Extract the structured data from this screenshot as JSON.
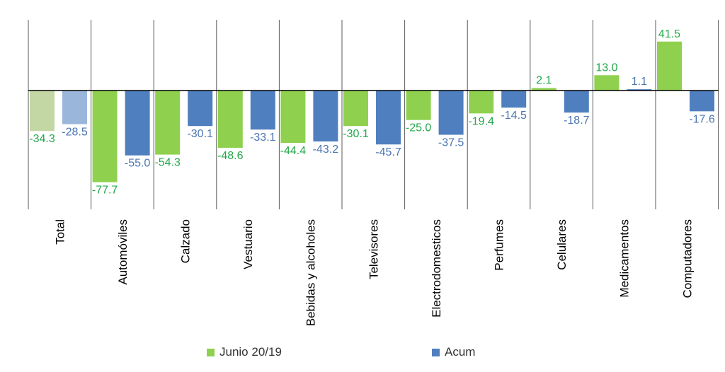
{
  "colors": {
    "junio": "#8fd14f",
    "acum": "#4f7fbe",
    "junio_total": "#c3d7a4",
    "acum_total": "#9ab6db",
    "junio_label": "#22a84a",
    "acum_label": "#4a74b0",
    "grid": "#595959"
  },
  "chart_data": {
    "type": "bar",
    "categories": [
      "Total",
      "Automóviles",
      "Calzado",
      "Vestuario",
      "Bebidas y alcoholes",
      "Televisores",
      "Electrodomesticos",
      "Perfumes",
      "Celulares",
      "Medicamentos",
      "Computadores"
    ],
    "series": [
      {
        "name": "Junio 20/19",
        "values": [
          -34.3,
          -77.7,
          -54.3,
          -48.6,
          -44.4,
          -30.1,
          -25.0,
          -19.4,
          2.1,
          13.0,
          41.5
        ],
        "labels": [
          "-34.3",
          "-77.7",
          "-54.3",
          "-48.6",
          "-44.4",
          "-30.1",
          "-25.0",
          "-19.4",
          "2.1",
          "13.0",
          "41.5"
        ]
      },
      {
        "name": "Acum",
        "values": [
          -28.5,
          -55.0,
          -30.1,
          -33.1,
          -43.2,
          -45.7,
          -37.5,
          -14.5,
          -18.7,
          1.1,
          -17.6
        ],
        "labels": [
          "-28.5",
          "-55.0",
          "-30.1",
          "-33.1",
          "-43.2",
          "-45.7",
          "-37.5",
          "-14.5",
          "-18.7",
          "1.1",
          "-17.6"
        ]
      }
    ],
    "ylim": [
      -80,
      48
    ],
    "legend_position": "bottom",
    "grid": "vertical category separators"
  },
  "legend": {
    "junio": "Junio 20/19",
    "acum": "Acum"
  }
}
